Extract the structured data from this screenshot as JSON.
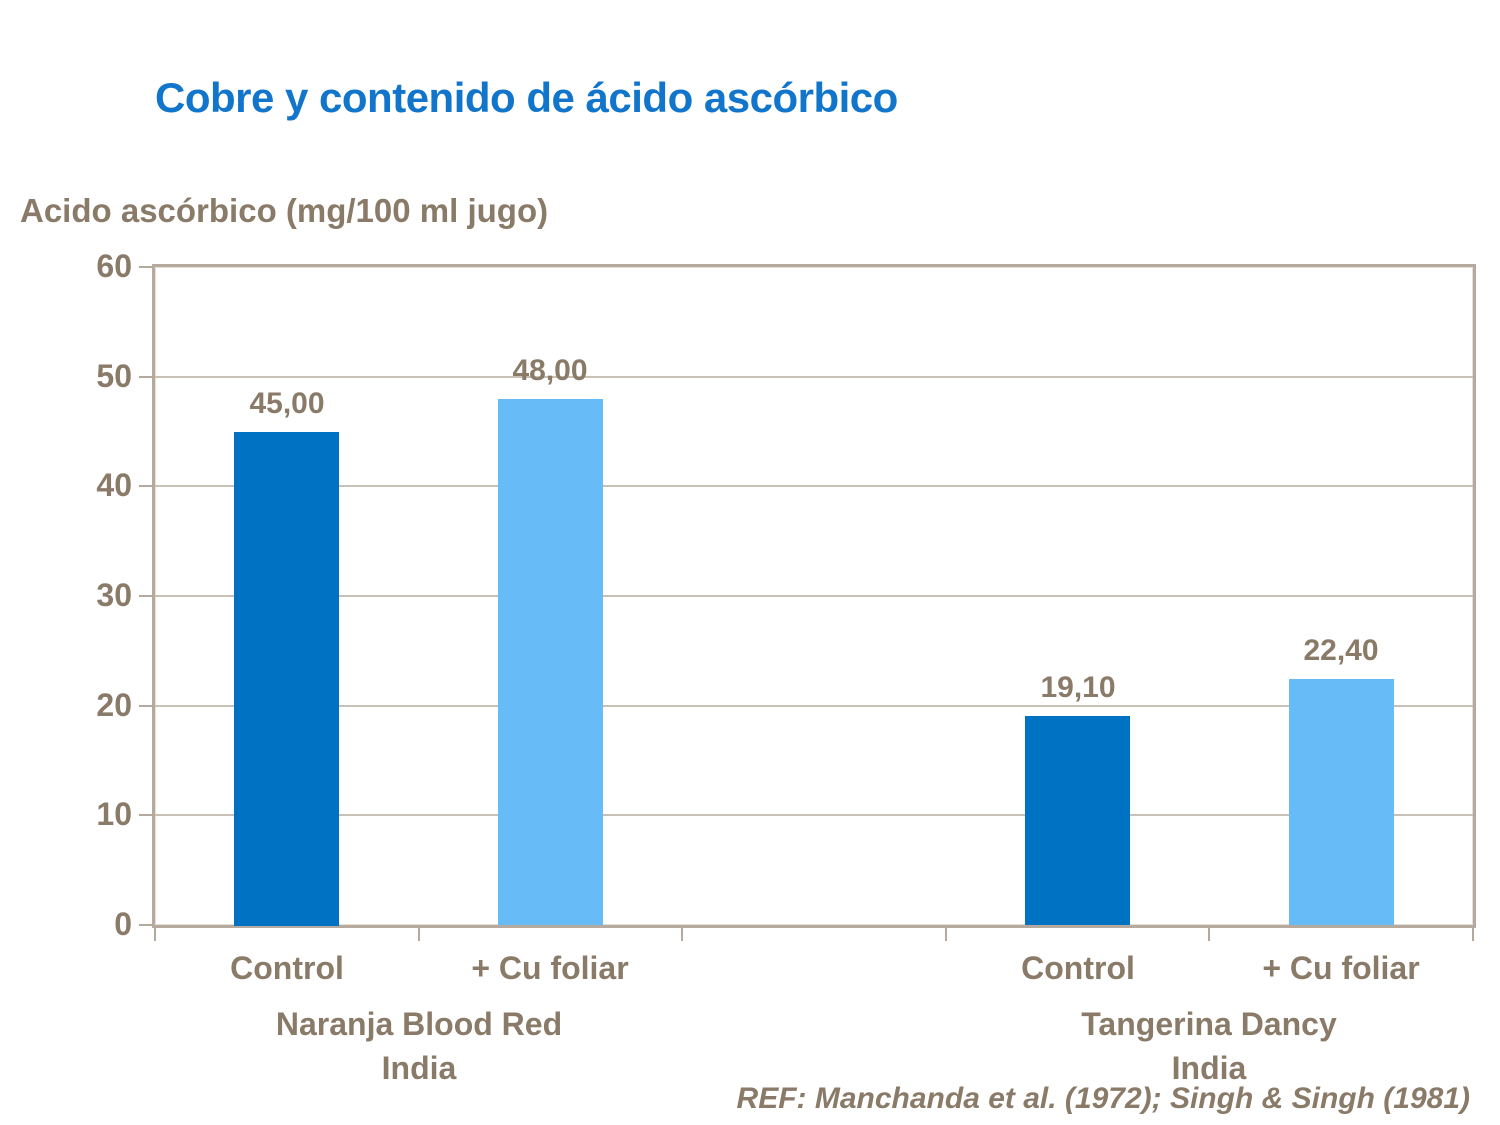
{
  "title": "Cobre y contenido de ácido ascórbico",
  "footer_ref": "REF: Manchanda et al. (1972); Singh & Singh (1981)",
  "colors": {
    "title_blue": "#1176CB",
    "bar_dark_blue": "#0072C4",
    "bar_light_blue": "#67BBF7",
    "text_brown": "#8A7A68",
    "gridline": "#C9C0B6",
    "plot_border": "#B5AA9D"
  },
  "chart_data": {
    "type": "bar",
    "title": "Cobre y contenido de ácido ascórbico",
    "xlabel": "",
    "ylabel": "Acido ascórbico (mg/100 ml jugo)",
    "ylim": [
      0,
      60
    ],
    "yticks": [
      0,
      10,
      20,
      30,
      40,
      50,
      60
    ],
    "grid": true,
    "legend_position": "none",
    "groups": [
      {
        "label": "Naranja Blood Red",
        "sublabel": "India",
        "bars": [
          {
            "category": "Control",
            "value": 45.0,
            "value_label": "45,00",
            "color_key": "bar_dark_blue"
          },
          {
            "category": "+ Cu foliar",
            "value": 48.0,
            "value_label": "48,00",
            "color_key": "bar_light_blue"
          }
        ]
      },
      {
        "label": "Tangerina Dancy",
        "sublabel": "India",
        "bars": [
          {
            "category": "Control",
            "value": 19.1,
            "value_label": "19,10",
            "color_key": "bar_dark_blue"
          },
          {
            "category": "+ Cu foliar",
            "value": 22.4,
            "value_label": "22,40",
            "color_key": "bar_light_blue"
          }
        ]
      }
    ]
  }
}
